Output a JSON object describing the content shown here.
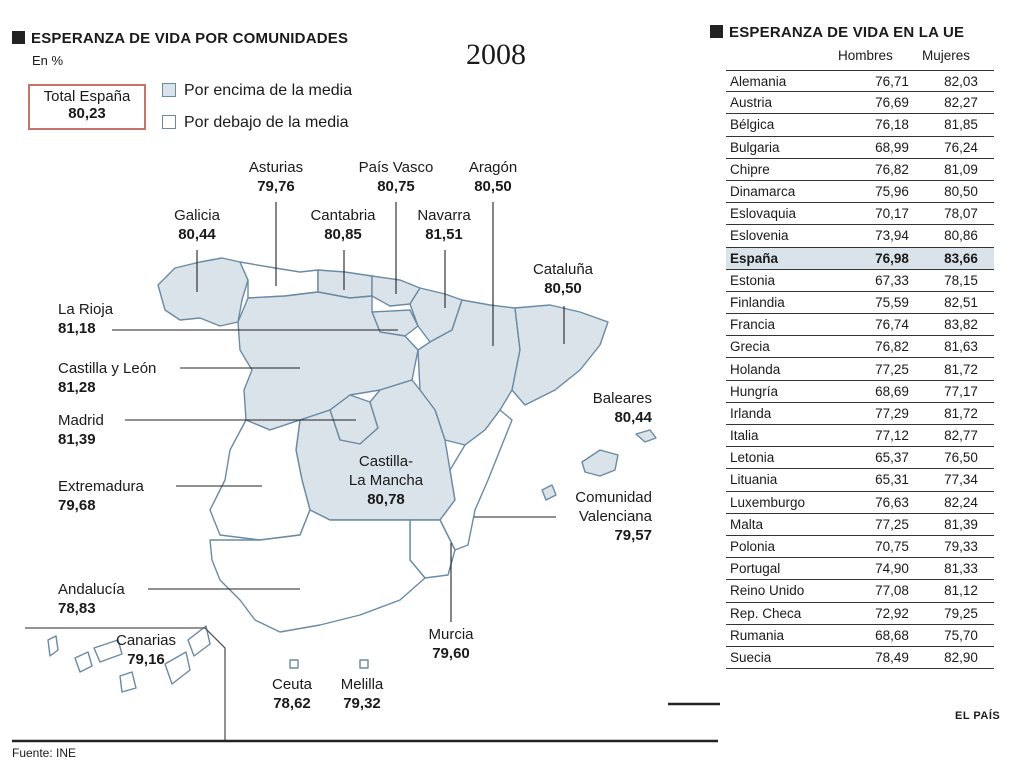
{
  "left": {
    "title": "ESPERANZA DE VIDA POR COMUNIDADES",
    "unit": "En %",
    "year": "2008",
    "total": {
      "label": "Total España",
      "value": "80,23"
    },
    "legend": {
      "above": "Por encima de la media",
      "below": "Por debajo de la media"
    },
    "regions": [
      {
        "name": "Asturias",
        "value": "79,76",
        "above": false
      },
      {
        "name": "País Vasco",
        "value": "80,75",
        "above": true
      },
      {
        "name": "Aragón",
        "value": "80,50",
        "above": true
      },
      {
        "name": "Galicia",
        "value": "80,44",
        "above": true
      },
      {
        "name": "Cantabria",
        "value": "80,85",
        "above": true
      },
      {
        "name": "Navarra",
        "value": "81,51",
        "above": true
      },
      {
        "name": "Cataluña",
        "value": "80,50",
        "above": true
      },
      {
        "name": "La Rioja",
        "value": "81,18",
        "above": true
      },
      {
        "name": "Castilla y León",
        "value": "81,28",
        "above": true
      },
      {
        "name": "Madrid",
        "value": "81,39",
        "above": true
      },
      {
        "name": "Extremadura",
        "value": "79,68",
        "above": false
      },
      {
        "name": "Castilla-",
        "name2": "La Mancha",
        "value": "80,78",
        "above": true
      },
      {
        "name": "Baleares",
        "value": "80,44",
        "above": true
      },
      {
        "name": "Comunidad",
        "name2": "Valenciana",
        "value": "79,57",
        "above": false
      },
      {
        "name": "Andalucía",
        "value": "78,83",
        "above": false
      },
      {
        "name": "Canarias",
        "value": "79,16",
        "above": false
      },
      {
        "name": "Murcia",
        "value": "79,60",
        "above": false
      },
      {
        "name": "Ceuta",
        "value": "78,62",
        "above": false
      },
      {
        "name": "Melilla",
        "value": "79,32",
        "above": false
      }
    ],
    "colors": {
      "above": "#dbe3ea",
      "below": "#ffffff",
      "border": "#6a8aa3",
      "total_border": "#c7726a"
    }
  },
  "right": {
    "title": "ESPERANZA DE VIDA EN LA UE",
    "col_men": "Hombres",
    "col_women": "Mujeres",
    "rows": [
      [
        "Alemania",
        "76,71",
        "82,03"
      ],
      [
        "Austria",
        "76,69",
        "82,27"
      ],
      [
        "Bélgica",
        "76,18",
        "81,85"
      ],
      [
        "Bulgaria",
        "68,99",
        "76,24"
      ],
      [
        "Chipre",
        "76,82",
        "81,09"
      ],
      [
        "Dinamarca",
        "75,96",
        "80,50"
      ],
      [
        "Eslovaquia",
        "70,17",
        "78,07"
      ],
      [
        "Eslovenia",
        "73,94",
        "80,86"
      ],
      [
        "España",
        "76,98",
        "83,66"
      ],
      [
        "Estonia",
        "67,33",
        "78,15"
      ],
      [
        "Finlandia",
        "75,59",
        "82,51"
      ],
      [
        "Francia",
        "76,74",
        "83,82"
      ],
      [
        "Grecia",
        "76,82",
        "81,63"
      ],
      [
        "Holanda",
        "77,25",
        "81,72"
      ],
      [
        "Hungría",
        "68,69",
        "77,17"
      ],
      [
        "Irlanda",
        "77,29",
        "81,72"
      ],
      [
        "Italia",
        "77,12",
        "82,77"
      ],
      [
        "Letonia",
        "65,37",
        "76,50"
      ],
      [
        "Lituania",
        "65,31",
        "77,34"
      ],
      [
        "Luxemburgo",
        "76,63",
        "82,24"
      ],
      [
        "Malta",
        "77,25",
        "81,39"
      ],
      [
        "Polonia",
        "70,75",
        "79,33"
      ],
      [
        "Portugal",
        "74,90",
        "81,33"
      ],
      [
        "Reino Unido",
        "77,08",
        "81,12"
      ],
      [
        "Rep. Checa",
        "72,92",
        "79,25"
      ],
      [
        "Rumania",
        "68,68",
        "75,70"
      ],
      [
        "Suecia",
        "78,49",
        "82,90"
      ]
    ],
    "highlight": "España"
  },
  "footer": {
    "source": "Fuente: INE",
    "brand": "EL PAÍS"
  }
}
